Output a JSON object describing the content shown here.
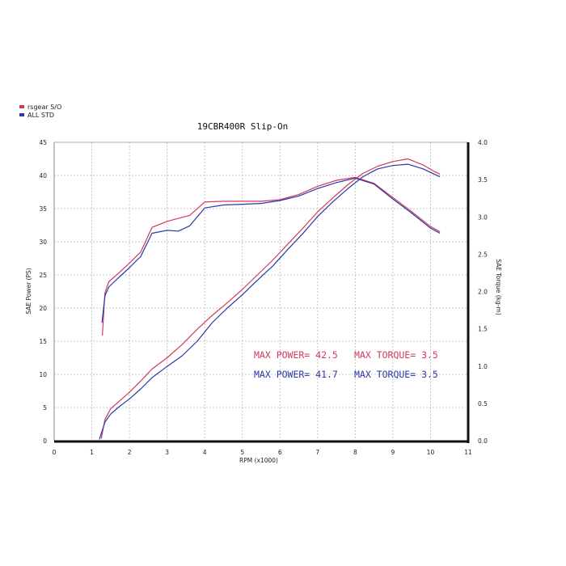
{
  "chart_data": {
    "type": "line",
    "title": "19CBR400R Slip-On",
    "xlabel": "RPM (x1000)",
    "ylabel": "SAE Power (PS)",
    "y2label": "SAE Torque (kg-m)",
    "xlim": [
      0,
      11
    ],
    "ylim": [
      0,
      45
    ],
    "y2lim": [
      0,
      4.0
    ],
    "x_ticks": [
      "0",
      "1",
      "2",
      "3",
      "4",
      "5",
      "6",
      "7",
      "8",
      "9",
      "10",
      "11"
    ],
    "y_ticks": [
      "0",
      "5",
      "10",
      "15",
      "20",
      "25",
      "30",
      "35",
      "40",
      "45"
    ],
    "y2_ticks": [
      "0.0",
      "0.5",
      "1.0",
      "1.5",
      "2.0",
      "2.5",
      "3.0",
      "3.5",
      "4.0"
    ],
    "grid": true,
    "legend_position": "top-left",
    "colors": {
      "rsgear": "#d23a5a",
      "std": "#2a38a8",
      "grid": "#b8b8b8"
    },
    "legend": [
      {
        "label": "rsgear S/O",
        "color": "#d23a5a"
      },
      {
        "label": "ALL STD",
        "color": "#2a38a8"
      }
    ],
    "annotations": {
      "rsgear_power": "MAX POWER= 42.5",
      "rsgear_torque": "MAX TORQUE= 3.5",
      "std_power": "MAX POWER= 41.7",
      "std_torque": "MAX TORQUE= 3.5"
    },
    "series": [
      {
        "name": "rsgear S/O",
        "metric": "power",
        "axis": "left",
        "color": "#d23a5a",
        "x": [
          1.25,
          1.35,
          1.5,
          1.7,
          2.0,
          2.3,
          2.6,
          3.0,
          3.4,
          3.8,
          4.2,
          4.6,
          5.0,
          5.4,
          5.8,
          6.2,
          6.6,
          7.0,
          7.4,
          7.8,
          8.2,
          8.6,
          9.0,
          9.4,
          9.8,
          10.1,
          10.25
        ],
        "values": [
          0.3,
          3.2,
          4.8,
          5.8,
          7.3,
          9.0,
          10.8,
          12.5,
          14.5,
          16.8,
          18.9,
          20.8,
          22.8,
          25.0,
          27.2,
          29.6,
          32.0,
          34.5,
          36.6,
          38.6,
          40.3,
          41.4,
          42.1,
          42.5,
          41.6,
          40.6,
          40.2
        ]
      },
      {
        "name": "ALL STD",
        "metric": "power",
        "axis": "left",
        "color": "#2a38a8",
        "x": [
          1.2,
          1.35,
          1.5,
          1.7,
          2.0,
          2.3,
          2.6,
          3.0,
          3.4,
          3.8,
          4.2,
          4.6,
          5.0,
          5.4,
          5.8,
          6.2,
          6.6,
          7.0,
          7.4,
          7.8,
          8.2,
          8.6,
          9.0,
          9.4,
          9.8,
          10.1,
          10.25
        ],
        "values": [
          0.2,
          2.8,
          4.0,
          5.0,
          6.3,
          7.8,
          9.5,
          11.2,
          12.8,
          15.0,
          17.8,
          20.0,
          22.0,
          24.2,
          26.3,
          28.8,
          31.2,
          33.8,
          36.0,
          38.0,
          39.8,
          41.0,
          41.5,
          41.7,
          41.0,
          40.2,
          39.8
        ]
      },
      {
        "name": "rsgear S/O",
        "metric": "torque",
        "axis": "right",
        "color": "#d23a5a",
        "x": [
          1.28,
          1.35,
          1.45,
          1.7,
          2.0,
          2.3,
          2.6,
          3.0,
          3.3,
          3.6,
          4.0,
          4.5,
          5.0,
          5.5,
          6.0,
          6.5,
          7.0,
          7.5,
          8.0,
          8.5,
          9.0,
          9.5,
          10.0,
          10.25
        ],
        "values": [
          1.41,
          1.98,
          2.13,
          2.24,
          2.38,
          2.53,
          2.86,
          2.94,
          2.98,
          3.02,
          3.2,
          3.21,
          3.21,
          3.21,
          3.23,
          3.3,
          3.41,
          3.49,
          3.53,
          3.45,
          3.26,
          3.07,
          2.87,
          2.8
        ]
      },
      {
        "name": "ALL STD",
        "metric": "torque",
        "axis": "right",
        "color": "#2a38a8",
        "x": [
          1.27,
          1.35,
          1.45,
          1.7,
          2.0,
          2.3,
          2.6,
          3.0,
          3.3,
          3.6,
          4.0,
          4.5,
          5.0,
          5.5,
          6.0,
          6.5,
          7.0,
          7.5,
          8.0,
          8.5,
          9.0,
          9.5,
          10.0,
          10.25
        ],
        "values": [
          1.58,
          1.94,
          2.06,
          2.18,
          2.32,
          2.47,
          2.78,
          2.82,
          2.81,
          2.88,
          3.12,
          3.16,
          3.17,
          3.18,
          3.22,
          3.28,
          3.38,
          3.46,
          3.52,
          3.44,
          3.24,
          3.05,
          2.85,
          2.78
        ]
      }
    ]
  }
}
